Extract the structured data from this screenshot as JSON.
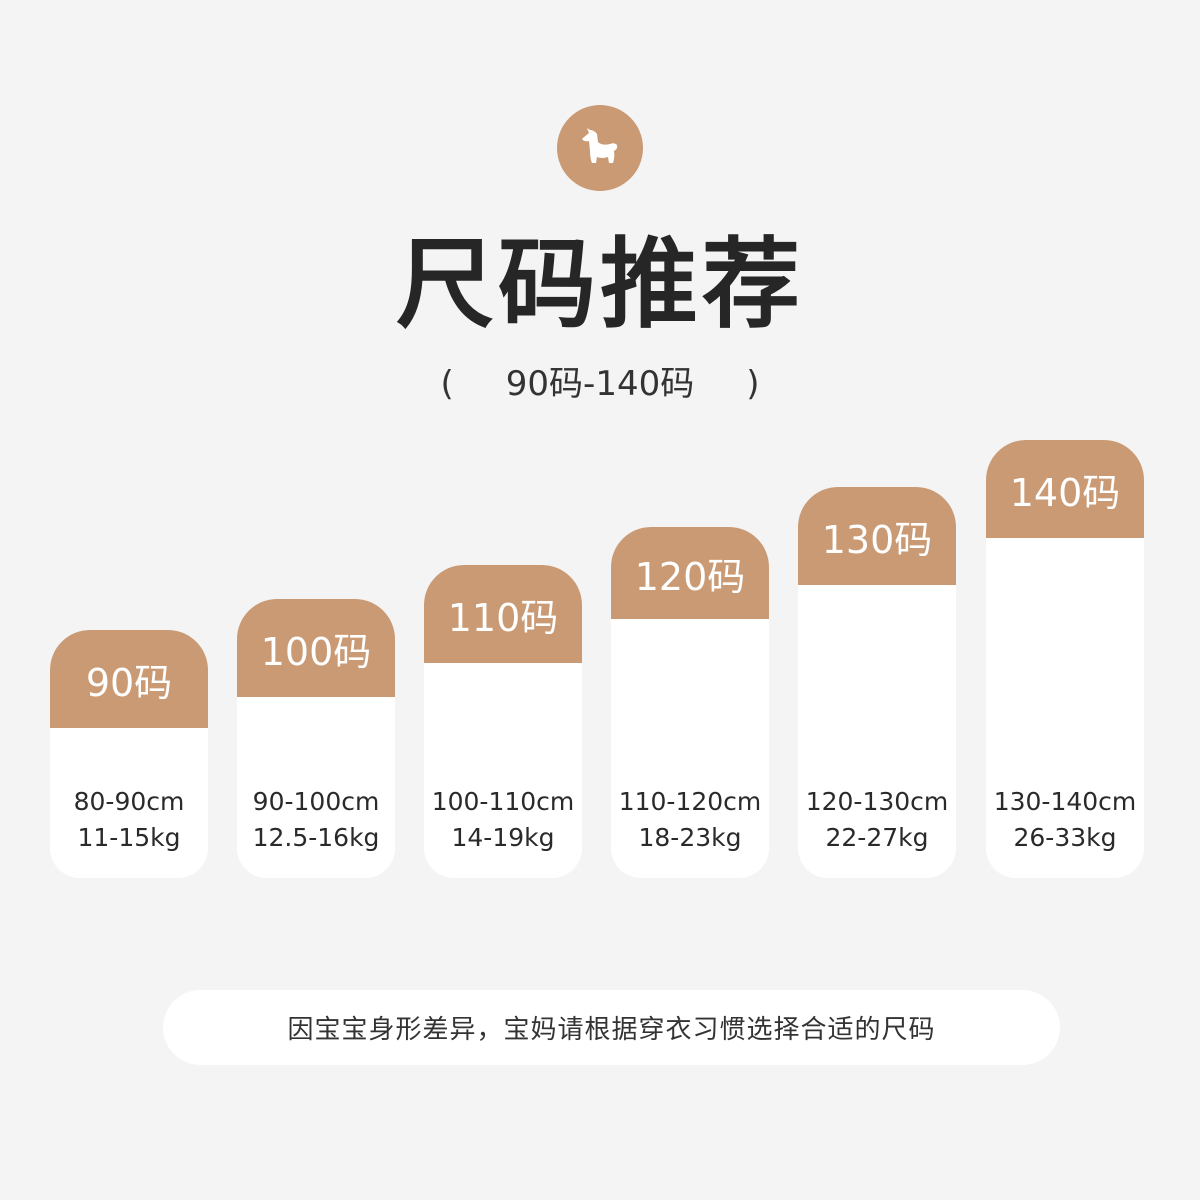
{
  "logo": {
    "icon": "alpaca-icon",
    "color": "#c99a74"
  },
  "title": "尺码推荐",
  "subtitle": {
    "open": "(",
    "range": "90码-140码",
    "close": ")"
  },
  "sizes": [
    {
      "size": "90码",
      "height": "80-90cm",
      "weight": "11-15kg"
    },
    {
      "size": "100码",
      "height": "90-100cm",
      "weight": "12.5-16kg"
    },
    {
      "size": "110码",
      "height": "100-110cm",
      "weight": "14-19kg"
    },
    {
      "size": "120码",
      "height": "110-120cm",
      "weight": "18-23kg"
    },
    {
      "size": "130码",
      "height": "120-130cm",
      "weight": "22-27kg"
    },
    {
      "size": "140码",
      "height": "130-140cm",
      "weight": "26-33kg"
    }
  ],
  "note": "因宝宝身形差异，宝妈请根据穿衣习惯选择合适的尺码",
  "colors": {
    "accent": "#c99a74",
    "background": "#f4f4f4"
  }
}
